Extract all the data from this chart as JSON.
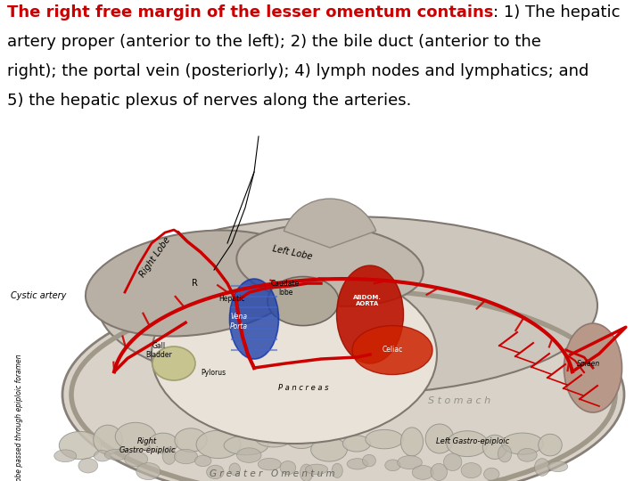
{
  "background_color": "#ffffff",
  "bold_text": "The right free margin of the lesser omentum contains",
  "bold_color": "#cc0000",
  "normal_text": ": 1) The hepatic artery proper (anterior to the left); 2) the bile duct (anterior to the right); the portal vein (posteriorly); 4) lymph nodes and lymphatics; and 5) the hepatic plexus of nerves along the arteries.",
  "normal_color": "#000000",
  "text_fontsize": 13.0,
  "text_line1_bold": "The right free margin of the lesser omentum contains",
  "text_line1_normal": ": 1) The hepatic",
  "text_line2": "artery proper (anterior to the left); 2) the bile duct (anterior to the",
  "text_line3": "right); the portal vein (posteriorly); 4) lymph nodes and lymphatics; and",
  "text_line4": "5) the hepatic plexus of nerves along the arteries.",
  "fig_width": 7.2,
  "fig_height": 5.4,
  "dpi": 100
}
